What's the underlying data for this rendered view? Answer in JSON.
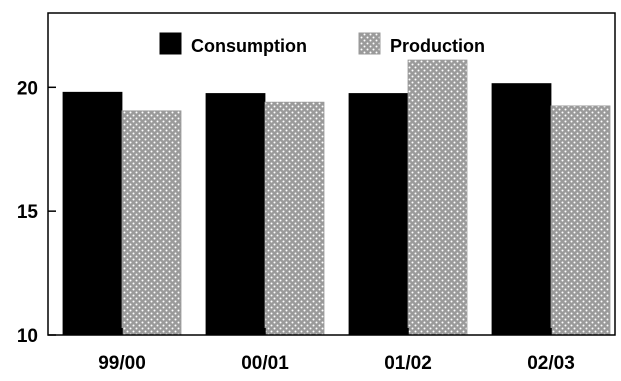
{
  "chart_data": {
    "type": "bar",
    "categories": [
      "99/00",
      "00/01",
      "01/02",
      "02/03"
    ],
    "series": [
      {
        "name": "Consumption",
        "values": [
          19.8,
          19.75,
          19.75,
          20.15
        ],
        "fill": "black"
      },
      {
        "name": "Production",
        "values": [
          19.05,
          19.4,
          21.1,
          19.25
        ],
        "fill": "dotted-gray"
      }
    ],
    "ylim": [
      10,
      23
    ],
    "yticks": [
      10,
      15,
      20
    ],
    "ytick_labels": [
      "10",
      "15",
      "20"
    ],
    "title": "",
    "xlabel": "",
    "ylabel": "",
    "legend": {
      "placement": "top-center"
    },
    "grid": false,
    "colors": {
      "consumption": "#000000",
      "production": "#9a9a9a",
      "production_dots": "#ffffff",
      "axis": "#000000"
    }
  }
}
